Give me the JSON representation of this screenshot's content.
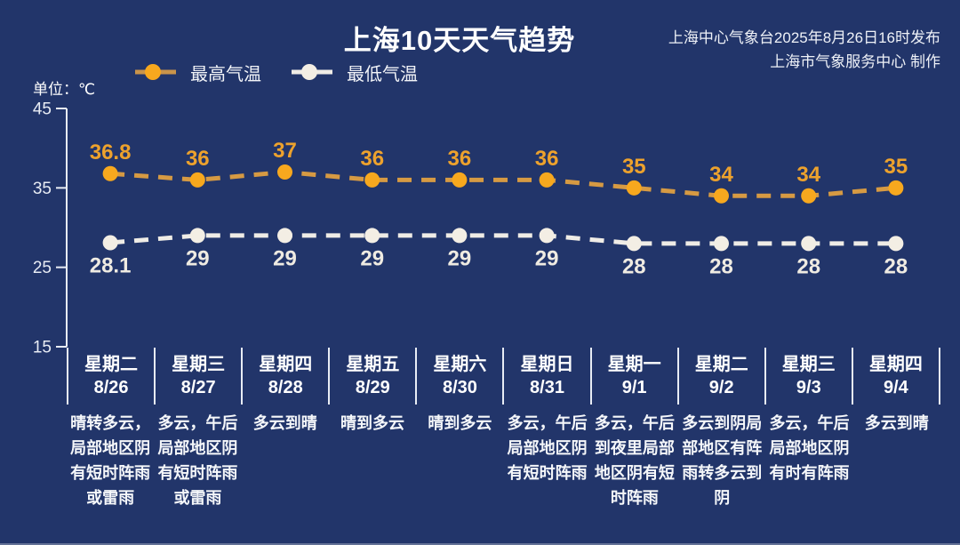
{
  "header": {
    "title": "上海10天天气趋势",
    "publisher_line1": "上海中心气象台2025年8月26日16时发布",
    "publisher_line2": "上海市气象服务中心 制作"
  },
  "unit_label": "单位：℃",
  "legend": [
    {
      "label": "最高气温",
      "dot_color": "#F7A81E",
      "line_color": "#C9944A"
    },
    {
      "label": "最低气温",
      "dot_color": "#F3EEE4",
      "line_color": "#EFECE6"
    }
  ],
  "colors": {
    "background": "#22356A",
    "axis": "#E8ECF4",
    "tick_text": "#E8ECF4",
    "title_text": "#FFFFFF",
    "high_accent": "#F7A81E",
    "low_accent": "#F3EEE4"
  },
  "chart_data": {
    "type": "line",
    "title": "上海10天天气趋势",
    "unit": "℃",
    "ylim": [
      15,
      45
    ],
    "y_ticks": [
      45,
      35,
      25,
      15
    ],
    "grid": false,
    "line_style": "dashed",
    "legend_position": "top-left",
    "categories": [
      {
        "day": "星期二",
        "date": "8/26",
        "weather": "晴转多云，局部地区阴有短时阵雨或雷雨"
      },
      {
        "day": "星期三",
        "date": "8/27",
        "weather": "多云，午后局部地区阴有短时阵雨或雷雨"
      },
      {
        "day": "星期四",
        "date": "8/28",
        "weather": "多云到晴"
      },
      {
        "day": "星期五",
        "date": "8/29",
        "weather": "晴到多云"
      },
      {
        "day": "星期六",
        "date": "8/30",
        "weather": "晴到多云"
      },
      {
        "day": "星期日",
        "date": "8/31",
        "weather": "多云，午后局部地区阴有短时阵雨"
      },
      {
        "day": "星期一",
        "date": "9/1",
        "weather": "多云，午后到夜里局部地区阴有短时阵雨"
      },
      {
        "day": "星期二",
        "date": "9/2",
        "weather": "多云到阴局部地区有阵雨转多云到阴"
      },
      {
        "day": "星期三",
        "date": "9/3",
        "weather": "多云，午后局部地区阴有时有阵雨"
      },
      {
        "day": "星期四",
        "date": "9/4",
        "weather": "多云到晴"
      }
    ],
    "series": [
      {
        "name": "最高气温",
        "values": [
          36.8,
          36,
          37,
          36,
          36,
          36,
          35,
          34,
          34,
          35
        ],
        "dot_color": "#F7A81E",
        "line_color": "#D69A43",
        "label_color": "#EDA22D",
        "label_side": "above"
      },
      {
        "name": "最低气温",
        "values": [
          28.1,
          29,
          29,
          29,
          29,
          29,
          28,
          28,
          28,
          28
        ],
        "dot_color": "#F3EEE4",
        "line_color": "#EFECE6",
        "label_color": "#EFEBE2",
        "label_side": "below"
      }
    ]
  }
}
